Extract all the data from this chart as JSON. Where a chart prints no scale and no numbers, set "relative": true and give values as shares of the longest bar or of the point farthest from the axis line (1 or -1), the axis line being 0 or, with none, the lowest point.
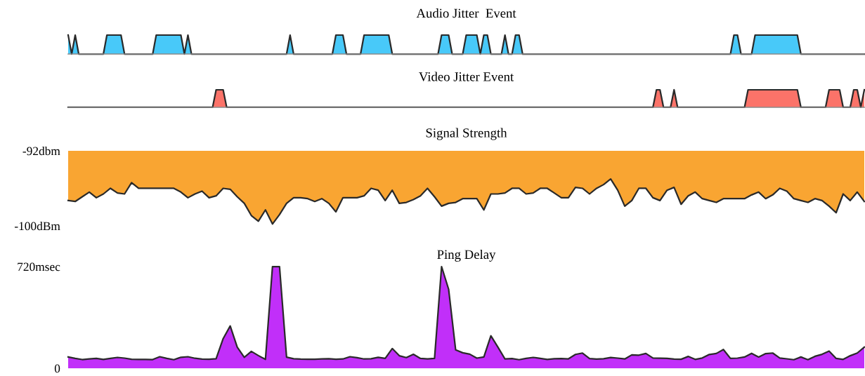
{
  "chart_data": [
    {
      "type": "area",
      "title": "Audio Jitter  Event",
      "relative": true,
      "categories": [
        null,
        null,
        null,
        null,
        null,
        null,
        null,
        null,
        null,
        null,
        null,
        null,
        null,
        null,
        null,
        null,
        null,
        null,
        null,
        null,
        null,
        null,
        null,
        null,
        null,
        null,
        null,
        null,
        null,
        null,
        null,
        null,
        null,
        null,
        null,
        null,
        null,
        null,
        null,
        null,
        null,
        null,
        null,
        null,
        null,
        null,
        null,
        null,
        null,
        null,
        null,
        null,
        null,
        null,
        null,
        null,
        null,
        null,
        null,
        null,
        null,
        null,
        null,
        null,
        null,
        null,
        null,
        null,
        null,
        null,
        null,
        null,
        null,
        null,
        null,
        null,
        null,
        null,
        null,
        null,
        null,
        null,
        null,
        null,
        null,
        null,
        null,
        null,
        null,
        null,
        null,
        null,
        null,
        null,
        null,
        null,
        null,
        null,
        null,
        null,
        null,
        null,
        null,
        null,
        null,
        null,
        null,
        null,
        null,
        null,
        null,
        null,
        null,
        null,
        null,
        null,
        null,
        null,
        null,
        null,
        null,
        null,
        null,
        null,
        null,
        null,
        null,
        null,
        null,
        null,
        null,
        null,
        null,
        null,
        null,
        null,
        null,
        null,
        null,
        null,
        null,
        null,
        null,
        null,
        null,
        null,
        null,
        null,
        null,
        null,
        null,
        null,
        null,
        null,
        null,
        null,
        null,
        null,
        null,
        null,
        null,
        null,
        null,
        null,
        null,
        null,
        null,
        null,
        null,
        null,
        null,
        null,
        null,
        null,
        null,
        null,
        null,
        null,
        null,
        null,
        null,
        null,
        null,
        null,
        null,
        null,
        null,
        null,
        null,
        null,
        null,
        null,
        null,
        null,
        null,
        null,
        null,
        null,
        null,
        null,
        null,
        null,
        null,
        null,
        null,
        null,
        null,
        null,
        null,
        null,
        null,
        null,
        null,
        null,
        null,
        null,
        null,
        null,
        null,
        null,
        null,
        null,
        null,
        null,
        null,
        null,
        null
      ],
      "series": [
        {
          "color": "#48c9f9",
          "values": [
            1,
            0,
            1,
            0,
            0,
            0,
            0,
            0,
            0,
            0,
            0,
            1,
            1,
            1,
            1,
            1,
            0,
            0,
            0,
            0,
            0,
            0,
            0,
            0,
            0,
            1,
            1,
            1,
            1,
            1,
            1,
            1,
            1,
            0,
            1,
            0,
            0,
            0,
            0,
            0,
            0,
            0,
            0,
            0,
            0,
            0,
            0,
            0,
            0,
            0,
            0,
            0,
            0,
            0,
            0,
            0,
            0,
            0,
            0,
            0,
            0,
            0,
            0,
            1,
            0,
            0,
            0,
            0,
            0,
            0,
            0,
            0,
            0,
            0,
            0,
            0,
            1,
            1,
            1,
            0,
            0,
            0,
            0,
            0,
            1,
            1,
            1,
            1,
            1,
            1,
            1,
            1,
            0,
            0,
            0,
            0,
            0,
            0,
            0,
            0,
            0,
            0,
            0,
            0,
            0,
            0,
            1,
            1,
            1,
            0,
            0,
            0,
            0,
            1,
            1,
            1,
            1,
            0,
            1,
            1,
            0,
            0,
            0,
            0,
            1,
            0,
            0,
            1,
            1,
            0,
            0,
            0,
            0,
            0,
            0,
            0,
            0,
            0,
            0,
            0,
            0,
            0,
            0,
            0,
            0,
            0,
            0,
            0,
            0,
            0,
            0,
            0,
            0,
            0,
            0,
            0,
            0,
            0,
            0,
            0,
            0,
            0,
            0,
            0,
            0,
            0,
            0,
            0,
            0,
            0,
            0,
            0,
            0,
            0,
            0,
            0,
            0,
            0,
            0,
            0,
            0,
            0,
            0,
            0,
            0,
            0,
            0,
            0,
            0,
            1,
            1,
            0,
            0,
            0,
            0,
            1,
            1,
            1,
            1,
            1,
            1,
            1,
            1,
            1,
            1,
            1,
            1,
            1,
            0,
            0,
            0,
            0,
            0,
            0,
            0,
            0,
            0,
            0,
            0,
            0,
            0,
            0,
            0,
            0,
            0,
            0,
            0
          ]
        }
      ]
    },
    {
      "type": "area",
      "title": "Video Jitter Event",
      "relative": true,
      "categories": [
        null,
        null,
        null,
        null,
        null,
        null,
        null,
        null,
        null,
        null,
        null,
        null,
        null,
        null,
        null,
        null,
        null,
        null,
        null,
        null,
        null,
        null,
        null,
        null,
        null,
        null,
        null,
        null,
        null,
        null,
        null,
        null,
        null,
        null,
        null,
        null,
        null,
        null,
        null,
        null,
        null,
        null,
        null,
        null,
        null,
        null,
        null,
        null,
        null,
        null,
        null,
        null,
        null,
        null,
        null,
        null,
        null,
        null,
        null,
        null,
        null,
        null,
        null,
        null,
        null,
        null,
        null,
        null,
        null,
        null,
        null,
        null,
        null,
        null,
        null,
        null,
        null,
        null,
        null,
        null,
        null,
        null,
        null,
        null,
        null,
        null,
        null,
        null,
        null,
        null,
        null,
        null,
        null,
        null,
        null,
        null,
        null,
        null,
        null,
        null,
        null,
        null,
        null,
        null,
        null,
        null,
        null,
        null,
        null,
        null,
        null,
        null,
        null,
        null,
        null,
        null,
        null,
        null,
        null,
        null,
        null,
        null,
        null,
        null,
        null,
        null,
        null,
        null,
        null,
        null,
        null,
        null,
        null,
        null,
        null,
        null,
        null,
        null,
        null,
        null,
        null,
        null,
        null,
        null,
        null,
        null,
        null,
        null,
        null,
        null,
        null,
        null,
        null,
        null,
        null,
        null,
        null,
        null,
        null,
        null,
        null,
        null,
        null,
        null,
        null,
        null,
        null,
        null,
        null,
        null,
        null,
        null,
        null,
        null,
        null,
        null,
        null,
        null,
        null,
        null,
        null,
        null,
        null,
        null,
        null,
        null,
        null,
        null,
        null,
        null,
        null,
        null,
        null,
        null,
        null,
        null,
        null,
        null,
        null,
        null,
        null,
        null,
        null,
        null,
        null,
        null,
        null,
        null,
        null,
        null,
        null,
        null,
        null,
        null,
        null,
        null,
        null,
        null,
        null,
        null,
        null,
        null,
        null,
        null,
        null,
        null,
        null
      ],
      "series": [
        {
          "color": "#fb7369",
          "values": [
            0,
            0,
            0,
            0,
            0,
            0,
            0,
            0,
            0,
            0,
            0,
            0,
            0,
            0,
            0,
            0,
            0,
            0,
            0,
            0,
            0,
            0,
            0,
            0,
            0,
            0,
            0,
            0,
            0,
            0,
            0,
            0,
            0,
            0,
            0,
            0,
            0,
            0,
            0,
            0,
            0,
            0,
            1,
            1,
            1,
            0,
            0,
            0,
            0,
            0,
            0,
            0,
            0,
            0,
            0,
            0,
            0,
            0,
            0,
            0,
            0,
            0,
            0,
            0,
            0,
            0,
            0,
            0,
            0,
            0,
            0,
            0,
            0,
            0,
            0,
            0,
            0,
            0,
            0,
            0,
            0,
            0,
            0,
            0,
            0,
            0,
            0,
            0,
            0,
            0,
            0,
            0,
            0,
            0,
            0,
            0,
            0,
            0,
            0,
            0,
            0,
            0,
            0,
            0,
            0,
            0,
            0,
            0,
            0,
            0,
            0,
            0,
            0,
            0,
            0,
            0,
            0,
            0,
            0,
            0,
            0,
            0,
            0,
            0,
            0,
            0,
            0,
            0,
            0,
            0,
            0,
            0,
            0,
            0,
            0,
            0,
            0,
            0,
            0,
            0,
            0,
            0,
            0,
            0,
            0,
            0,
            0,
            0,
            0,
            0,
            0,
            0,
            0,
            0,
            0,
            0,
            0,
            0,
            0,
            0,
            0,
            0,
            0,
            0,
            0,
            0,
            0,
            1,
            1,
            0,
            0,
            0,
            1,
            0,
            0,
            0,
            0,
            0,
            0,
            0,
            0,
            0,
            0,
            0,
            0,
            0,
            0,
            0,
            0,
            0,
            0,
            0,
            0,
            1,
            1,
            1,
            1,
            1,
            1,
            1,
            1,
            1,
            1,
            1,
            1,
            1,
            1,
            1,
            0,
            0,
            0,
            0,
            0,
            0,
            0,
            0,
            1,
            1,
            1,
            1,
            0,
            0,
            0,
            1,
            1,
            0,
            1
          ]
        }
      ]
    },
    {
      "type": "area",
      "title": "Signal Strength",
      "categories": [
        null,
        null,
        null,
        null,
        null,
        null,
        null,
        null,
        null,
        null,
        null,
        null,
        null,
        null,
        null,
        null,
        null,
        null,
        null,
        null,
        null,
        null,
        null,
        null,
        null,
        null,
        null,
        null,
        null,
        null,
        null,
        null,
        null,
        null,
        null,
        null,
        null,
        null,
        null,
        null,
        null,
        null,
        null,
        null,
        null,
        null,
        null,
        null,
        null,
        null,
        null,
        null,
        null,
        null,
        null,
        null,
        null,
        null,
        null,
        null,
        null,
        null,
        null,
        null,
        null,
        null,
        null,
        null,
        null,
        null,
        null,
        null,
        null,
        null,
        null,
        null,
        null,
        null,
        null,
        null,
        null,
        null,
        null,
        null,
        null,
        null,
        null,
        null,
        null,
        null,
        null,
        null,
        null,
        null,
        null,
        null,
        null,
        null,
        null,
        null,
        null,
        null,
        null,
        null,
        null,
        null,
        null,
        null,
        null,
        null,
        null,
        null,
        null,
        null
      ],
      "ylim": [
        -100,
        -92
      ],
      "yticks": [
        {
          "value": -92,
          "label": "-92dbm"
        },
        {
          "value": -100,
          "label": "-100dBm"
        }
      ],
      "series": [
        {
          "color": "#f9a532",
          "values": [
            -97.3,
            -97.4,
            -96.9,
            -96.4,
            -97,
            -96.6,
            -96,
            -96.5,
            -96.6,
            -95.4,
            -96,
            -96,
            -96,
            -96,
            -96,
            -96,
            -96.4,
            -97,
            -96.6,
            -96.3,
            -97,
            -96.8,
            -96,
            -96.1,
            -96.9,
            -97.6,
            -98.9,
            -99.5,
            -98.3,
            -99.8,
            -98.8,
            -97.6,
            -97,
            -97,
            -97.1,
            -97.4,
            -97.1,
            -97.6,
            -98.5,
            -97,
            -97,
            -97,
            -96.8,
            -96,
            -96.2,
            -97.3,
            -96.2,
            -97.6,
            -97.5,
            -97.2,
            -96.8,
            -96,
            -96.9,
            -97.9,
            -97.6,
            -97.5,
            -97.1,
            -97.1,
            -97.1,
            -98.3,
            -96.6,
            -96.6,
            -96.5,
            -96,
            -96,
            -96.6,
            -96.5,
            -96,
            -96,
            -96.5,
            -97,
            -97,
            -95.9,
            -96,
            -96.6,
            -96,
            -95.6,
            -95,
            -96.2,
            -97.9,
            -97.3,
            -96,
            -96,
            -97,
            -97.3,
            -96.2,
            -95.9,
            -97.7,
            -96.8,
            -96.4,
            -97.1,
            -97.3,
            -97.5,
            -97.1,
            -97.1,
            -97.1,
            -97.1,
            -96.7,
            -96.4,
            -97.1,
            -96.7,
            -96,
            -96.3,
            -97.1,
            -97.3,
            -97.5,
            -97.1,
            -97.3,
            -97.9,
            -98.6,
            -96.6,
            -97.3,
            -96.4,
            -97.4
          ]
        }
      ]
    },
    {
      "type": "area",
      "title": "Ping Delay",
      "categories": [
        null,
        null,
        null,
        null,
        null,
        null,
        null,
        null,
        null,
        null,
        null,
        null,
        null,
        null,
        null,
        null,
        null,
        null,
        null,
        null,
        null,
        null,
        null,
        null,
        null,
        null,
        null,
        null,
        null,
        null,
        null,
        null,
        null,
        null,
        null,
        null,
        null,
        null,
        null,
        null,
        null,
        null,
        null,
        null,
        null,
        null,
        null,
        null,
        null,
        null,
        null,
        null,
        null,
        null,
        null,
        null,
        null,
        null,
        null,
        null,
        null,
        null,
        null,
        null,
        null,
        null,
        null,
        null,
        null,
        null,
        null,
        null,
        null,
        null,
        null,
        null,
        null,
        null,
        null,
        null,
        null,
        null,
        null,
        null,
        null,
        null,
        null,
        null,
        null,
        null,
        null,
        null,
        null,
        null,
        null,
        null,
        null,
        null,
        null,
        null,
        null,
        null,
        null,
        null,
        null,
        null,
        null,
        null,
        null,
        null,
        null,
        null,
        null,
        null
      ],
      "ylim": [
        0,
        720
      ],
      "yticks": [
        0,
        {
          "value": 720,
          "label": "720msec"
        }
      ],
      "series": [
        {
          "color": "#c12ff9",
          "values": [
            80,
            70,
            62,
            66,
            70,
            63,
            70,
            77,
            72,
            64,
            63,
            63,
            62,
            82,
            70,
            61,
            78,
            82,
            71,
            65,
            64,
            68,
            210,
            300,
            150,
            78,
            120,
            90,
            63,
            720,
            720,
            79,
            68,
            65,
            64,
            64,
            66,
            68,
            64,
            66,
            82,
            75,
            66,
            68,
            78,
            70,
            140,
            89,
            76,
            99,
            70,
            66,
            70,
            720,
            560,
            130,
            110,
            100,
            72,
            80,
            230,
            150,
            66,
            69,
            61,
            70,
            77,
            70,
            63,
            68,
            69,
            67,
            98,
            108,
            69,
            65,
            68,
            76,
            72,
            66,
            95,
            93,
            105,
            73,
            71,
            70,
            65,
            64,
            84,
            63,
            73,
            98,
            105,
            133,
            70,
            72,
            80,
            106,
            80,
            104,
            108,
            73,
            67,
            61,
            80,
            61,
            85,
            99,
            122,
            70,
            63,
            89,
            108,
            150
          ]
        }
      ]
    }
  ]
}
